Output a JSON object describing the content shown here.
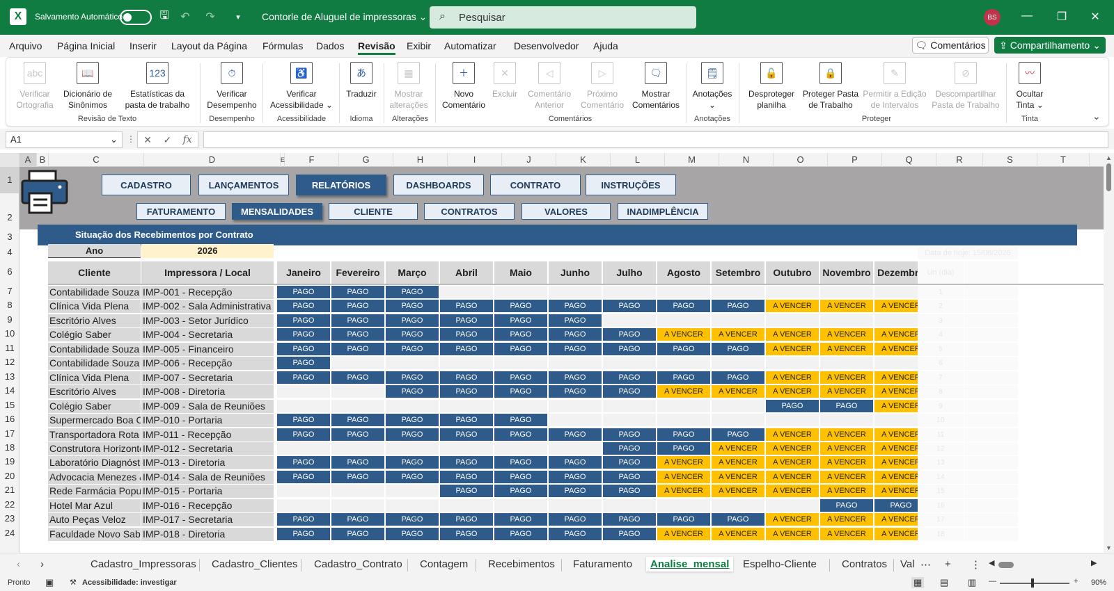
{
  "titlebar": {
    "autosave_label": "Salvamento Automático",
    "file_title": "Contorle de Aluguel de impressoras ⌄",
    "search_placeholder": "Pesquisar",
    "avatar": "BS"
  },
  "menu": {
    "items": [
      "Arquivo",
      "Página Inicial",
      "Inserir",
      "Layout da Página",
      "Fórmulas",
      "Dados",
      "Revisão",
      "Exibir",
      "Automatizar",
      "Desenvolvedor",
      "Ajuda"
    ],
    "active": "Revisão",
    "comments": "Comentários",
    "share": "Compartilhamento"
  },
  "ribbon": {
    "buttons": [
      {
        "label": "Verificar Ortografia",
        "icon": "abc",
        "dim": true
      },
      {
        "label": "Dicionário de Sinônimos",
        "icon": "book",
        "dim": false
      },
      {
        "label": "Estatísticas da pasta de trabalho",
        "icon": "123",
        "dim": false
      },
      {
        "label": "Verificar Desempenho",
        "icon": "perf",
        "dim": false
      },
      {
        "label": "Verificar Acessibilidade ⌄",
        "icon": "access",
        "dim": false
      },
      {
        "label": "Traduzir",
        "icon": "translate",
        "dim": false
      },
      {
        "label": "Mostrar alterações",
        "icon": "changes",
        "dim": true
      },
      {
        "label": "Novo Comentário",
        "icon": "new-comment",
        "dim": false
      },
      {
        "label": "Excluir",
        "icon": "delete",
        "dim": true
      },
      {
        "label": "Comentário Anterior",
        "icon": "prev",
        "dim": true
      },
      {
        "label": "Próximo Comentário",
        "icon": "next",
        "dim": true
      },
      {
        "label": "Mostrar Comentários",
        "icon": "show",
        "dim": false
      },
      {
        "label": "Anotações ⌄",
        "icon": "notes",
        "dim": false
      },
      {
        "label": "Desproteger planilha",
        "icon": "unprotect",
        "dim": false
      },
      {
        "label": "Proteger Pasta de Trabalho",
        "icon": "protect",
        "dim": false
      },
      {
        "label": "Permitir a Edição de Intervalos",
        "icon": "allow",
        "dim": true
      },
      {
        "label": "Descompartilhar Pasta de Trabalho",
        "icon": "unshare",
        "dim": true
      },
      {
        "label": "Ocultar Tinta ⌄",
        "icon": "ink",
        "dim": false
      }
    ],
    "groups": [
      "Revisão de Texto",
      "Desempenho",
      "Acessibilidade",
      "Idioma",
      "Alterações",
      "Comentários",
      "Anotações",
      "Proteger",
      "Tinta"
    ]
  },
  "formula": {
    "namebox": "A1",
    "value": ""
  },
  "columns": [
    "A",
    "B",
    "C",
    "D",
    "E",
    "F",
    "G",
    "H",
    "I",
    "J",
    "K",
    "L",
    "M",
    "N",
    "O",
    "P",
    "Q",
    "R",
    "S",
    "T"
  ],
  "rows": [
    "1",
    "2",
    "3",
    "4",
    "6",
    "7",
    "8",
    "9",
    "10",
    "11",
    "12",
    "13",
    "14",
    "15",
    "16",
    "17",
    "18",
    "19",
    "20",
    "21",
    "22",
    "23",
    "24"
  ],
  "nav": {
    "main": [
      "CADASTRO",
      "LANÇAMENTOS",
      "RELATÓRIOS",
      "DASHBOARDS",
      "CONTRATO",
      "INSTRUÇÕES"
    ],
    "main_active": "RELATÓRIOS",
    "sub": [
      "FATURAMENTO",
      "MENSALIDADES",
      "CLIENTE",
      "CONTRATOS",
      "VALORES",
      "INADIMPLÊNCIA"
    ],
    "sub_active": "MENSALIDADES"
  },
  "report": {
    "title": "Situação dos Recebimentos por Contrato",
    "year_label": "Ano",
    "year": "2026",
    "date_label": "Data de hoje: 15/08/2026",
    "headers": [
      "Cliente",
      "Impressora / Local",
      "Janeiro",
      "Fevereiro",
      "Março",
      "Abril",
      "Maio",
      "Junho",
      "Julho",
      "Agosto",
      "Setembro",
      "Outubro",
      "Novembro",
      "Dezembro"
    ],
    "dias_header": "Un (dia)",
    "rows": [
      {
        "client": "Contabilidade Souza",
        "printer": "IMP-001 - Recepção",
        "status": [
          "PAGO",
          "PAGO",
          "PAGO",
          "",
          "",
          "",
          "",
          "",
          "",
          "",
          "",
          ""
        ]
      },
      {
        "client": "Clínica Vida Plena",
        "printer": "IMP-002 - Sala Administrativa",
        "status": [
          "PAGO",
          "PAGO",
          "PAGO",
          "PAGO",
          "PAGO",
          "PAGO",
          "PAGO",
          "PAGO",
          "PAGO",
          "A VENCER",
          "A VENCER",
          "A VENCER"
        ]
      },
      {
        "client": "Escritório Alves",
        "printer": "IMP-003 - Setor Jurídico",
        "status": [
          "PAGO",
          "PAGO",
          "PAGO",
          "PAGO",
          "PAGO",
          "PAGO",
          "",
          "",
          "",
          "",
          "",
          ""
        ]
      },
      {
        "client": "Colégio Saber",
        "printer": "IMP-004 - Secretaria",
        "status": [
          "PAGO",
          "PAGO",
          "PAGO",
          "PAGO",
          "PAGO",
          "PAGO",
          "PAGO",
          "A VENCER",
          "A VENCER",
          "A VENCER",
          "A VENCER",
          "A VENCER"
        ]
      },
      {
        "client": "Contabilidade Souza",
        "printer": "IMP-005 - Financeiro",
        "status": [
          "PAGO",
          "PAGO",
          "PAGO",
          "PAGO",
          "PAGO",
          "PAGO",
          "PAGO",
          "PAGO",
          "PAGO",
          "A VENCER",
          "A VENCER",
          "A VENCER"
        ]
      },
      {
        "client": "Contabilidade Souza",
        "printer": "IMP-006 - Recepção",
        "status": [
          "PAGO",
          "",
          "",
          "",
          "",
          "",
          "",
          "",
          "",
          "",
          "",
          ""
        ]
      },
      {
        "client": "Clínica Vida Plena",
        "printer": "IMP-007 - Secretaria",
        "status": [
          "PAGO",
          "PAGO",
          "PAGO",
          "PAGO",
          "PAGO",
          "PAGO",
          "PAGO",
          "PAGO",
          "PAGO",
          "A VENCER",
          "A VENCER",
          "A VENCER"
        ]
      },
      {
        "client": "Escritório Alves",
        "printer": "IMP-008 - Diretoria",
        "status": [
          "",
          "",
          "PAGO",
          "PAGO",
          "PAGO",
          "PAGO",
          "PAGO",
          "A VENCER",
          "A VENCER",
          "A VENCER",
          "A VENCER",
          "A VENCER"
        ]
      },
      {
        "client": "Colégio Saber",
        "printer": "IMP-009 - Sala de Reuniões",
        "status": [
          "",
          "",
          "",
          "",
          "",
          "",
          "",
          "",
          "",
          "PAGO",
          "PAGO",
          "A VENCER"
        ]
      },
      {
        "client": "Supermercado Boa Compra",
        "printer": "IMP-010 - Portaria",
        "status": [
          "PAGO",
          "PAGO",
          "PAGO",
          "PAGO",
          "PAGO",
          "",
          "",
          "",
          "",
          "",
          "",
          ""
        ]
      },
      {
        "client": "Transportadora Rota Segura",
        "printer": "IMP-011 - Recepção",
        "status": [
          "PAGO",
          "PAGO",
          "PAGO",
          "PAGO",
          "PAGO",
          "PAGO",
          "PAGO",
          "PAGO",
          "PAGO",
          "A VENCER",
          "A VENCER",
          "A VENCER"
        ]
      },
      {
        "client": "Construtora Horizonte",
        "printer": "IMP-012 - Secretaria",
        "status": [
          "",
          "",
          "",
          "",
          "",
          "",
          "PAGO",
          "PAGO",
          "A VENCER",
          "A VENCER",
          "A VENCER",
          "A VENCER"
        ]
      },
      {
        "client": "Laboratório Diagnóstico",
        "printer": "IMP-013 - Diretoria",
        "status": [
          "PAGO",
          "PAGO",
          "PAGO",
          "PAGO",
          "PAGO",
          "PAGO",
          "PAGO",
          "A VENCER",
          "A VENCER",
          "A VENCER",
          "A VENCER",
          "A VENCER"
        ]
      },
      {
        "client": "Advocacia Menezes & Filhos",
        "printer": "IMP-014 - Sala de Reuniões",
        "status": [
          "PAGO",
          "PAGO",
          "PAGO",
          "PAGO",
          "PAGO",
          "PAGO",
          "PAGO",
          "A VENCER",
          "A VENCER",
          "A VENCER",
          "A VENCER",
          "A VENCER"
        ]
      },
      {
        "client": "Rede Farmácia Popular",
        "printer": "IMP-015 - Portaria",
        "status": [
          "",
          "",
          "",
          "PAGO",
          "PAGO",
          "PAGO",
          "PAGO",
          "A VENCER",
          "A VENCER",
          "A VENCER",
          "A VENCER",
          "A VENCER"
        ]
      },
      {
        "client": "Hotel Mar Azul",
        "printer": "IMP-016 - Recepção",
        "status": [
          "",
          "",
          "",
          "",
          "",
          "",
          "",
          "",
          "",
          "",
          "PAGO",
          "PAGO"
        ]
      },
      {
        "client": "Auto Peças Veloz",
        "printer": "IMP-017 - Secretaria",
        "status": [
          "PAGO",
          "PAGO",
          "PAGO",
          "PAGO",
          "PAGO",
          "PAGO",
          "PAGO",
          "PAGO",
          "PAGO",
          "A VENCER",
          "A VENCER",
          "A VENCER"
        ]
      },
      {
        "client": "Faculdade Novo Saber",
        "printer": "IMP-018 - Diretoria",
        "status": [
          "PAGO",
          "PAGO",
          "PAGO",
          "PAGO",
          "PAGO",
          "PAGO",
          "PAGO",
          "A VENCER",
          "A VENCER",
          "A VENCER",
          "A VENCER",
          "A VENCER"
        ]
      }
    ],
    "index": [
      "1",
      "2",
      "3",
      "4",
      "5",
      "6",
      "7",
      "8",
      "9",
      "10",
      "11",
      "12",
      "13",
      "14",
      "15",
      "16",
      "17",
      "18"
    ]
  },
  "tabs": {
    "items": [
      "Cadastro_Impressoras",
      "Cadastro_Clientes",
      "Cadastro_Contrato",
      "Contagem",
      "Recebimentos",
      "Faturamento",
      "Analise_mensal",
      "Espelho-Cliente",
      "Contratos",
      "Val"
    ],
    "active": "Analise_mensal"
  },
  "status": {
    "ready": "Pronto",
    "accessibility": "Acessibilidade: investigar",
    "zoom": "90%"
  },
  "colors": {
    "excel_green": "#107c41",
    "pago": "#2f5b8a",
    "a_vencer": "#ffc000"
  }
}
